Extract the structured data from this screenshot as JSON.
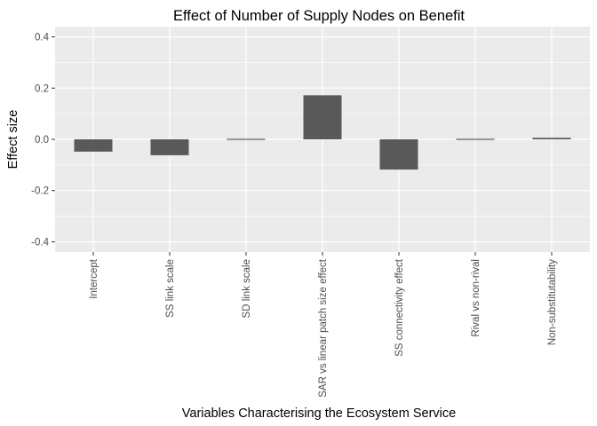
{
  "chart_data": {
    "type": "bar",
    "title": "Effect of Number of Supply Nodes on Benefit",
    "xlabel": "Variables Characterising the Ecosystem Service",
    "ylabel": "Effect size",
    "categories": [
      "Intercept",
      "SS link scale",
      "SD link scale",
      "SAR vs linear patch size effect",
      "SS connectivity effect",
      "Rival vs non-rival",
      "Non-substitutability"
    ],
    "values": [
      -0.048,
      -0.062,
      -0.003,
      0.172,
      -0.118,
      0.002,
      0.006
    ],
    "ylim": [
      -0.44,
      0.44
    ],
    "yticks": [
      -0.4,
      -0.2,
      0.0,
      0.2,
      0.4
    ],
    "ytick_labels": [
      "-0.4",
      "-0.2",
      "0.0",
      "0.2",
      "0.4"
    ],
    "grid": true,
    "legend": "none",
    "colors": {
      "bar": "#595959",
      "panel": "#ebebeb",
      "grid_major": "#ffffff",
      "tick_text": "#4d4d4d"
    }
  }
}
